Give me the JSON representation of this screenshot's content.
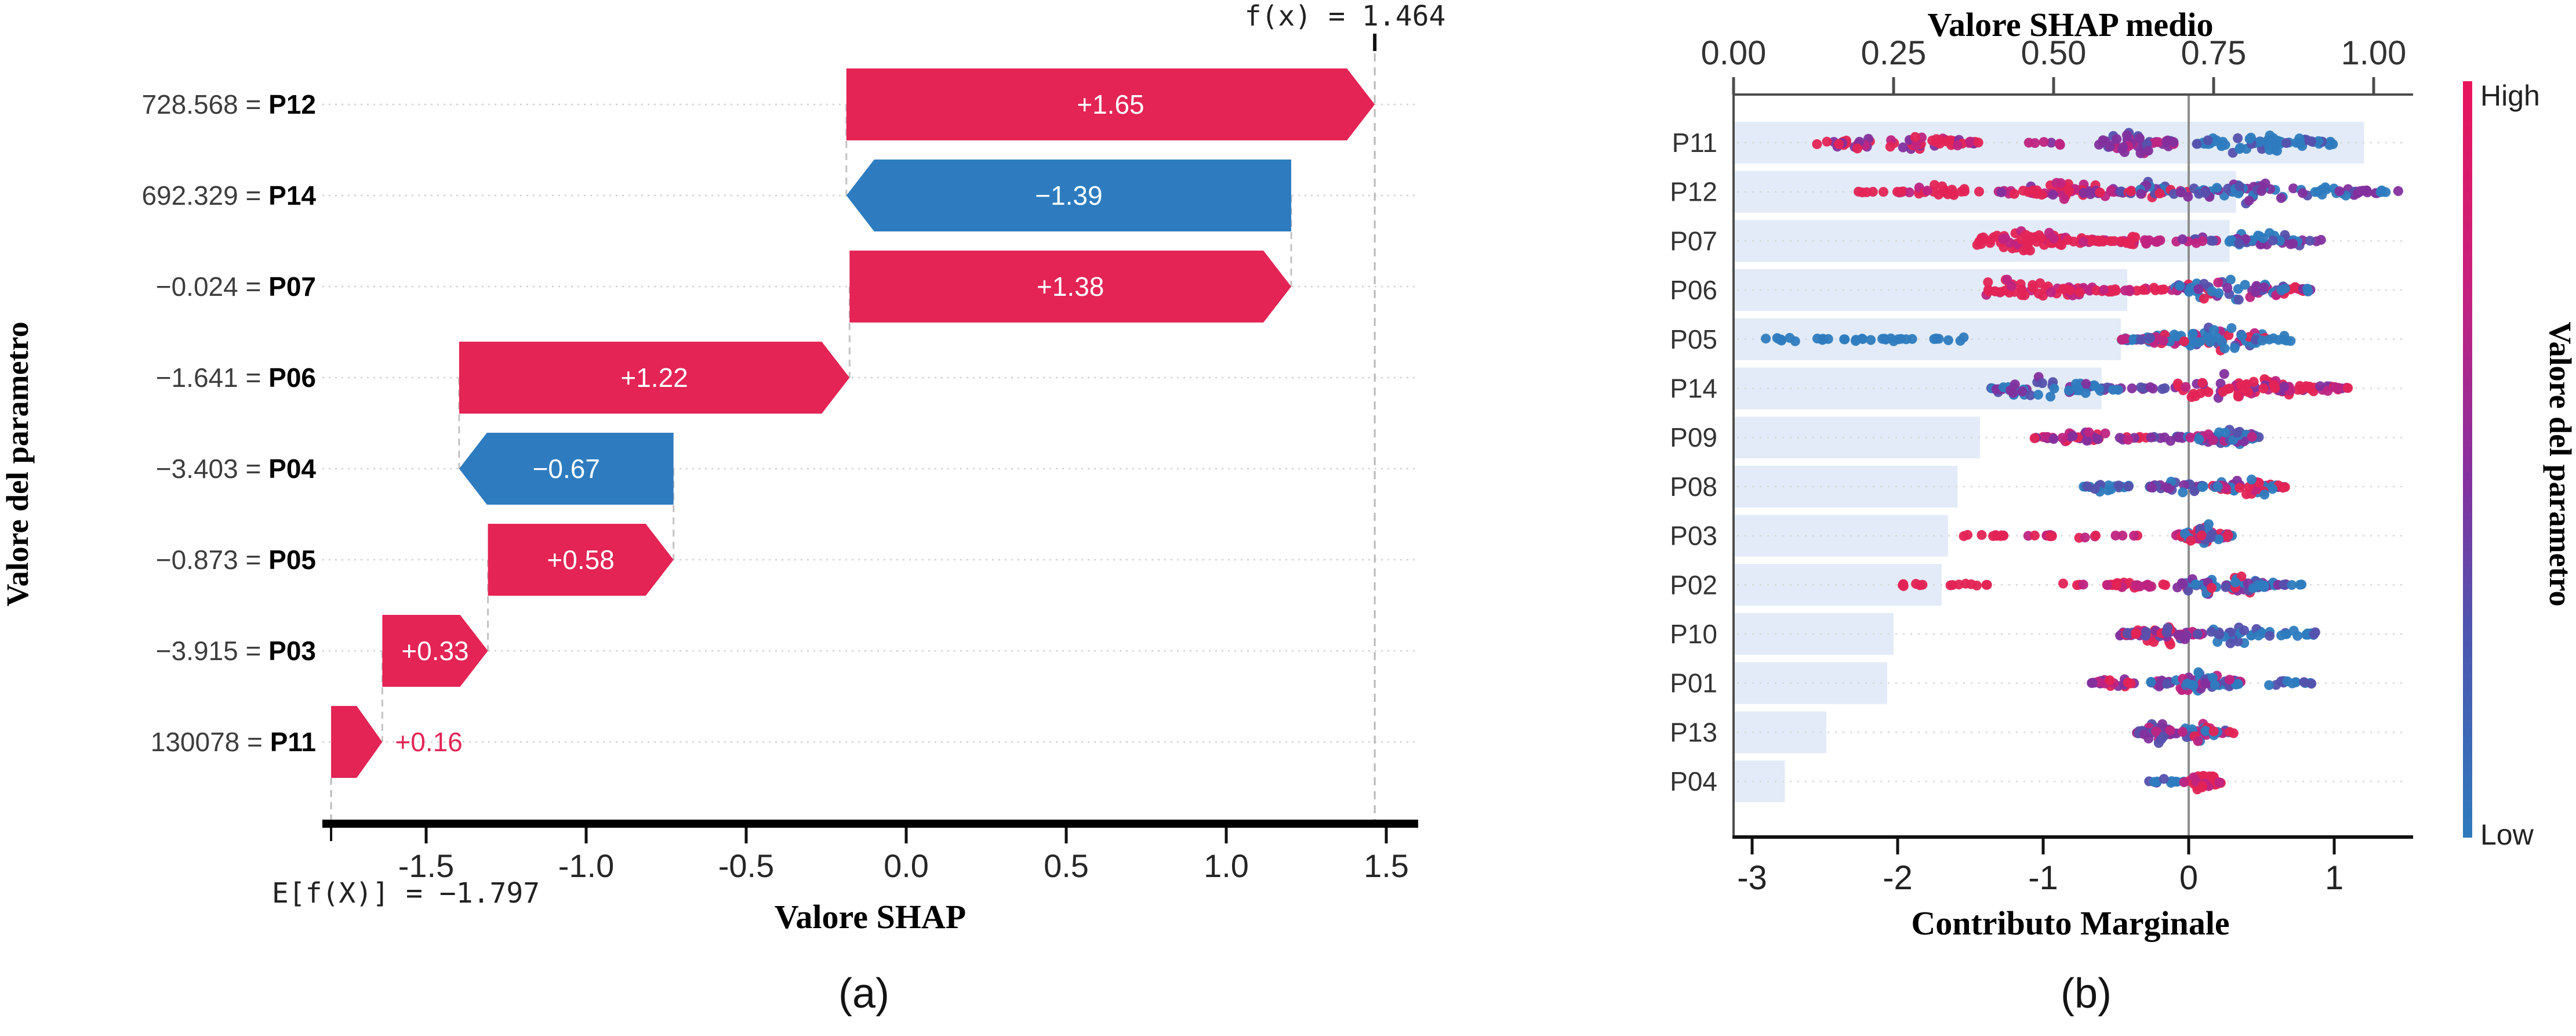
{
  "figure": {
    "panel_a_label": "(a)",
    "panel_b_label": "(b)"
  },
  "palette": {
    "red": "#e32455",
    "magenta": "#bf2482",
    "purple": "#83309e",
    "violet": "#5551ad",
    "blue": "#2e7cbf",
    "bar_bg": "#e2ebf7",
    "grid": "#d0d0d0",
    "connector": "#c2c2c2",
    "frame": "#4c4c4c",
    "zero_line": "#8e8e8e",
    "axis_black": "#000000",
    "label_gray": "#3d3d3d",
    "tick_label": "#262626",
    "white": "#ffffff"
  },
  "chart_data": [
    {
      "type": "waterfall",
      "panel": "a",
      "xlabel": "Valore SHAP",
      "ylabel": "Valore del parametro",
      "fx_annotation": "f(x) = 1.464",
      "fx_value": 1.464,
      "base_annotation": "E[f(X)] = −1.797",
      "base_value": -1.797,
      "xtick_values": [
        -1.5,
        -1.0,
        -0.5,
        0.0,
        0.5,
        1.0,
        1.5
      ],
      "xtick_labels": [
        "-1.5",
        "-1.0",
        "-0.5",
        "0.0",
        "0.5",
        "1.0",
        "1.5"
      ],
      "rows": [
        {
          "feature": "P12",
          "value": "728.568",
          "shap_label": "+1.65",
          "start": -0.187,
          "end": 1.464,
          "color": "red",
          "label_inside": true
        },
        {
          "feature": "P14",
          "value": "692.329",
          "shap_label": "−1.39",
          "start": 1.203,
          "end": -0.187,
          "color": "blue",
          "label_inside": true
        },
        {
          "feature": "P07",
          "value": "−0.024",
          "shap_label": "+1.38",
          "start": -0.177,
          "end": 1.203,
          "color": "red",
          "label_inside": true
        },
        {
          "feature": "P06",
          "value": "−1.641",
          "shap_label": "+1.22",
          "start": -1.397,
          "end": -0.177,
          "color": "red",
          "label_inside": true
        },
        {
          "feature": "P04",
          "value": "−3.403",
          "shap_label": "−0.67",
          "start": -0.727,
          "end": -1.397,
          "color": "blue",
          "label_inside": true
        },
        {
          "feature": "P05",
          "value": "−0.873",
          "shap_label": "+0.58",
          "start": -1.307,
          "end": -0.727,
          "color": "red",
          "label_inside": true
        },
        {
          "feature": "P03",
          "value": "−3.915",
          "shap_label": "+0.33",
          "start": -1.637,
          "end": -1.307,
          "color": "red",
          "label_inside": true
        },
        {
          "feature": "P11",
          "value": "130078",
          "shap_label": "+0.16",
          "start": -1.797,
          "end": -1.637,
          "color": "red",
          "label_inside": false
        }
      ]
    },
    {
      "type": "beeswarm_bar",
      "panel": "b",
      "top_axis_label": "Valore SHAP medio",
      "top_tick_labels": [
        "0.00",
        "0.25",
        "0.50",
        "0.75",
        "1.00"
      ],
      "top_tick_values": [
        0,
        0.25,
        0.5,
        0.75,
        1.0
      ],
      "bottom_axis_label": "Contributo Marginale",
      "bottom_tick_labels": [
        "-3",
        "-2",
        "-1",
        "0",
        "1"
      ],
      "bottom_tick_values": [
        -3,
        -2,
        -1,
        0,
        1
      ],
      "colorbar": {
        "label": "Valore del parametro",
        "high": "High",
        "low": "Low"
      },
      "rows": [
        {
          "feature": "P11",
          "mean_shap": 0.985,
          "clusters": [
            {
              "x0": -2.55,
              "x1": -1.4,
              "n": 62,
              "h": 26,
              "peak": 0.45,
              "colors": [
                "red",
                "red",
                "red",
                "magenta",
                "purple"
              ]
            },
            {
              "x0": -1.1,
              "x1": -0.75,
              "n": 6,
              "h": 8,
              "peak": 0.5,
              "colors": [
                "purple",
                "magenta"
              ]
            },
            {
              "x0": -0.6,
              "x1": -0.05,
              "n": 50,
              "h": 34,
              "peak": 0.45,
              "colors": [
                "purple",
                "purple",
                "violet",
                "magenta"
              ]
            },
            {
              "x0": 0.05,
              "x1": 1.0,
              "n": 62,
              "h": 30,
              "peak": 0.45,
              "colors": [
                "blue",
                "blue",
                "blue",
                "violet"
              ]
            }
          ]
        },
        {
          "feature": "P12",
          "mean_shap": 0.785,
          "clusters": [
            {
              "x0": -2.35,
              "x1": -2.1,
              "n": 5,
              "h": 7,
              "peak": 0.5,
              "colors": [
                "red"
              ]
            },
            {
              "x0": -2.0,
              "x1": -1.4,
              "n": 26,
              "h": 18,
              "peak": 0.5,
              "colors": [
                "red",
                "red",
                "magenta"
              ]
            },
            {
              "x0": -1.35,
              "x1": -0.5,
              "n": 55,
              "h": 30,
              "peak": 0.55,
              "colors": [
                "red",
                "magenta",
                "red",
                "purple",
                "magenta"
              ]
            },
            {
              "x0": -0.5,
              "x1": 0.0,
              "n": 30,
              "h": 22,
              "peak": 0.5,
              "colors": [
                "purple",
                "magenta",
                "blue",
                "violet",
                "red"
              ]
            },
            {
              "x0": 0.0,
              "x1": 1.45,
              "n": 78,
              "h": 28,
              "peak": 0.3,
              "colors": [
                "blue",
                "violet",
                "purple",
                "blue",
                "purple"
              ]
            }
          ]
        },
        {
          "feature": "P07",
          "mean_shap": 0.775,
          "clusters": [
            {
              "x0": -1.45,
              "x1": -0.55,
              "n": 75,
              "h": 34,
              "peak": 0.3,
              "colors": [
                "red",
                "red",
                "red",
                "magenta"
              ]
            },
            {
              "x0": -0.55,
              "x1": -0.12,
              "n": 22,
              "h": 14,
              "peak": 0.5,
              "colors": [
                "red",
                "magenta"
              ]
            },
            {
              "x0": -0.12,
              "x1": 0.18,
              "n": 12,
              "h": 12,
              "peak": 0.5,
              "colors": [
                "purple",
                "magenta",
                "violet"
              ]
            },
            {
              "x0": 0.25,
              "x1": 0.9,
              "n": 45,
              "h": 26,
              "peak": 0.45,
              "colors": [
                "blue",
                "blue",
                "violet",
                "purple"
              ]
            }
          ]
        },
        {
          "feature": "P06",
          "mean_shap": 0.615,
          "clusters": [
            {
              "x0": -1.4,
              "x1": -0.5,
              "n": 62,
              "h": 30,
              "peak": 0.3,
              "colors": [
                "red",
                "red",
                "magenta"
              ]
            },
            {
              "x0": -0.45,
              "x1": -0.12,
              "n": 12,
              "h": 8,
              "peak": 0.5,
              "colors": [
                "red",
                "magenta"
              ]
            },
            {
              "x0": -0.1,
              "x1": 0.85,
              "n": 78,
              "h": 30,
              "peak": 0.35,
              "colors": [
                "blue",
                "red",
                "violet",
                "magenta",
                "blue",
                "purple",
                "red"
              ]
            }
          ]
        },
        {
          "feature": "P05",
          "mean_shap": 0.605,
          "clusters": [
            {
              "x0": -2.95,
              "x1": -2.45,
              "n": 12,
              "h": 8,
              "peak": 0.5,
              "colors": [
                "blue"
              ]
            },
            {
              "x0": -2.4,
              "x1": -1.85,
              "n": 16,
              "h": 9,
              "peak": 0.5,
              "colors": [
                "blue"
              ]
            },
            {
              "x0": -1.8,
              "x1": -1.45,
              "n": 7,
              "h": 7,
              "peak": 0.5,
              "colors": [
                "blue"
              ]
            },
            {
              "x0": -0.45,
              "x1": 0.52,
              "n": 95,
              "h": 34,
              "peak": 0.7,
              "colors": [
                "blue",
                "blue",
                "blue",
                "violet",
                "magenta",
                "red"
              ]
            },
            {
              "x0": 0.55,
              "x1": 0.78,
              "n": 7,
              "h": 8,
              "peak": 0.5,
              "colors": [
                "blue"
              ]
            }
          ]
        },
        {
          "feature": "P14",
          "mean_shap": 0.575,
          "clusters": [
            {
              "x0": -1.35,
              "x1": -0.45,
              "n": 55,
              "h": 28,
              "peak": 0.4,
              "colors": [
                "blue",
                "violet",
                "purple",
                "blue"
              ]
            },
            {
              "x0": -0.4,
              "x1": -0.12,
              "n": 8,
              "h": 8,
              "peak": 0.5,
              "colors": [
                "purple",
                "violet"
              ]
            },
            {
              "x0": -0.08,
              "x1": 1.12,
              "n": 90,
              "h": 32,
              "peak": 0.22,
              "colors": [
                "red",
                "red",
                "magenta",
                "red",
                "purple"
              ]
            }
          ]
        },
        {
          "feature": "P09",
          "mean_shap": 0.385,
          "clusters": [
            {
              "x0": -1.05,
              "x1": -0.3,
              "n": 40,
              "h": 20,
              "peak": 0.5,
              "colors": [
                "red",
                "magenta",
                "purple"
              ]
            },
            {
              "x0": -0.25,
              "x1": -0.03,
              "n": 10,
              "h": 10,
              "peak": 0.5,
              "colors": [
                "purple",
                "violet"
              ]
            },
            {
              "x0": -0.02,
              "x1": 0.5,
              "n": 55,
              "h": 28,
              "peak": 0.5,
              "colors": [
                "blue",
                "violet",
                "purple",
                "blue",
                "magenta"
              ]
            }
          ]
        },
        {
          "feature": "P08",
          "mean_shap": 0.35,
          "clusters": [
            {
              "x0": -0.75,
              "x1": -0.4,
              "n": 20,
              "h": 14,
              "peak": 0.5,
              "colors": [
                "blue",
                "blue",
                "violet"
              ]
            },
            {
              "x0": -0.3,
              "x1": 0.1,
              "n": 28,
              "h": 18,
              "peak": 0.6,
              "colors": [
                "blue",
                "violet",
                "purple"
              ]
            },
            {
              "x0": 0.15,
              "x1": 0.65,
              "n": 55,
              "h": 30,
              "peak": 0.5,
              "colors": [
                "red",
                "magenta",
                "red",
                "blue",
                "purple"
              ]
            }
          ]
        },
        {
          "feature": "P03",
          "mean_shap": 0.335,
          "clusters": [
            {
              "x0": -1.6,
              "x1": -1.25,
              "n": 10,
              "h": 6,
              "peak": 0.5,
              "colors": [
                "red"
              ]
            },
            {
              "x0": -1.2,
              "x1": -0.35,
              "n": 16,
              "h": 6,
              "peak": 0.5,
              "colors": [
                "red",
                "magenta"
              ]
            },
            {
              "x0": -0.08,
              "x1": 0.3,
              "n": 60,
              "h": 30,
              "peak": 0.5,
              "colors": [
                "red",
                "blue",
                "magenta",
                "blue",
                "red",
                "violet"
              ]
            }
          ]
        },
        {
          "feature": "P02",
          "mean_shap": 0.325,
          "clusters": [
            {
              "x0": -2.05,
              "x1": -1.8,
              "n": 7,
              "h": 6,
              "peak": 0.5,
              "colors": [
                "red"
              ]
            },
            {
              "x0": -1.65,
              "x1": -1.38,
              "n": 8,
              "h": 6,
              "peak": 0.5,
              "colors": [
                "red"
              ]
            },
            {
              "x0": -1.0,
              "x1": -0.72,
              "n": 4,
              "h": 5,
              "peak": 0.5,
              "colors": [
                "red",
                "magenta"
              ]
            },
            {
              "x0": -0.55,
              "x1": -0.15,
              "n": 26,
              "h": 14,
              "peak": 0.5,
              "colors": [
                "red",
                "magenta",
                "red"
              ]
            },
            {
              "x0": -0.1,
              "x1": 0.68,
              "n": 72,
              "h": 30,
              "peak": 0.4,
              "colors": [
                "blue",
                "blue",
                "violet",
                "purple",
                "red",
                "blue"
              ]
            },
            {
              "x0": 0.72,
              "x1": 0.82,
              "n": 3,
              "h": 5,
              "peak": 0.5,
              "colors": [
                "blue"
              ]
            }
          ]
        },
        {
          "feature": "P10",
          "mean_shap": 0.25,
          "clusters": [
            {
              "x0": -0.48,
              "x1": 0.1,
              "n": 65,
              "h": 30,
              "peak": 0.5,
              "colors": [
                "red",
                "purple",
                "magenta",
                "violet",
                "red"
              ]
            },
            {
              "x0": 0.15,
              "x1": 0.88,
              "n": 42,
              "h": 24,
              "peak": 0.3,
              "colors": [
                "blue",
                "blue",
                "violet"
              ]
            }
          ]
        },
        {
          "feature": "P01",
          "mean_shap": 0.24,
          "clusters": [
            {
              "x0": -0.68,
              "x1": -0.35,
              "n": 22,
              "h": 14,
              "peak": 0.5,
              "colors": [
                "red",
                "magenta",
                "purple"
              ]
            },
            {
              "x0": -0.3,
              "x1": 0.35,
              "n": 70,
              "h": 30,
              "peak": 0.55,
              "colors": [
                "blue",
                "violet",
                "purple",
                "blue",
                "magenta"
              ]
            },
            {
              "x0": 0.4,
              "x1": 0.9,
              "n": 14,
              "h": 9,
              "peak": 0.5,
              "colors": [
                "blue",
                "violet"
              ]
            }
          ]
        },
        {
          "feature": "P13",
          "mean_shap": 0.145,
          "clusters": [
            {
              "x0": -0.35,
              "x1": -0.08,
              "n": 45,
              "h": 28,
              "peak": 0.55,
              "colors": [
                "purple",
                "violet",
                "purple",
                "magenta"
              ]
            },
            {
              "x0": -0.05,
              "x1": 0.3,
              "n": 35,
              "h": 22,
              "peak": 0.4,
              "colors": [
                "red",
                "blue",
                "magenta",
                "violet",
                "blue"
              ]
            }
          ]
        },
        {
          "feature": "P04",
          "mean_shap": 0.08,
          "clusters": [
            {
              "x0": -0.3,
              "x1": -0.05,
              "n": 10,
              "h": 7,
              "peak": 0.5,
              "colors": [
                "blue",
                "violet"
              ]
            },
            {
              "x0": -0.02,
              "x1": 0.22,
              "n": 48,
              "h": 30,
              "peak": 0.5,
              "colors": [
                "red",
                "red",
                "magenta"
              ]
            }
          ]
        }
      ]
    }
  ]
}
